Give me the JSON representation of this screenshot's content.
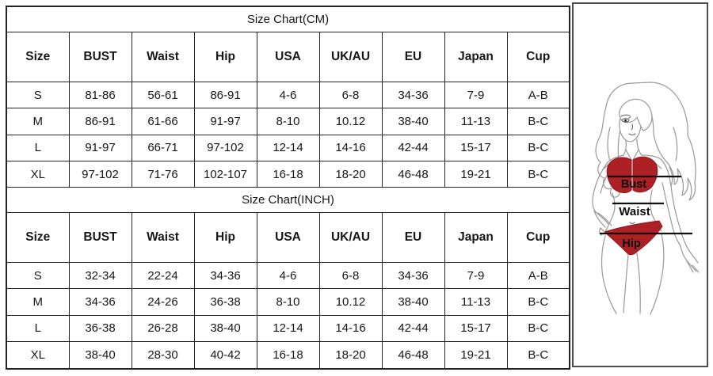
{
  "cm_table": {
    "title": "Size Chart(CM)",
    "headers": [
      "Size",
      "BUST",
      "Waist",
      "Hip",
      "USA",
      "UK/AU",
      "EU",
      "Japan",
      "Cup"
    ],
    "rows": [
      [
        "S",
        "81-86",
        "56-61",
        "86-91",
        "4-6",
        "6-8",
        "34-36",
        "7-9",
        "A-B"
      ],
      [
        "M",
        "86-91",
        "61-66",
        "91-97",
        "8-10",
        "10.12",
        "38-40",
        "11-13",
        "B-C"
      ],
      [
        "L",
        "91-97",
        "66-71",
        "97-102",
        "12-14",
        "14-16",
        "42-44",
        "15-17",
        "B-C"
      ],
      [
        "XL",
        "97-102",
        "71-76",
        "102-107",
        "16-18",
        "18-20",
        "46-48",
        "19-21",
        "B-C"
      ]
    ]
  },
  "inch_table": {
    "title": "Size Chart(INCH)",
    "headers": [
      "Size",
      "BUST",
      "Waist",
      "Hip",
      "USA",
      "UK/AU",
      "EU",
      "Japan",
      "Cup"
    ],
    "rows": [
      [
        "S",
        "32-34",
        "22-24",
        "34-36",
        "4-6",
        "6-8",
        "34-36",
        "7-9",
        "A-B"
      ],
      [
        "M",
        "34-36",
        "24-26",
        "36-38",
        "8-10",
        "10.12",
        "38-40",
        "11-13",
        "B-C"
      ],
      [
        "L",
        "36-38",
        "26-28",
        "38-40",
        "12-14",
        "14-16",
        "42-44",
        "15-17",
        "B-C"
      ],
      [
        "XL",
        "38-40",
        "28-30",
        "40-42",
        "16-18",
        "18-20",
        "46-48",
        "19-21",
        "B-C"
      ]
    ]
  },
  "figure": {
    "labels": {
      "bust": "Bust",
      "waist": "Waist",
      "hip": "Hip"
    },
    "colors": {
      "bikini_red": "#AC2026",
      "outline_gray": "#9B9B9B",
      "measure_line": "#101010",
      "border": "#242424"
    }
  }
}
